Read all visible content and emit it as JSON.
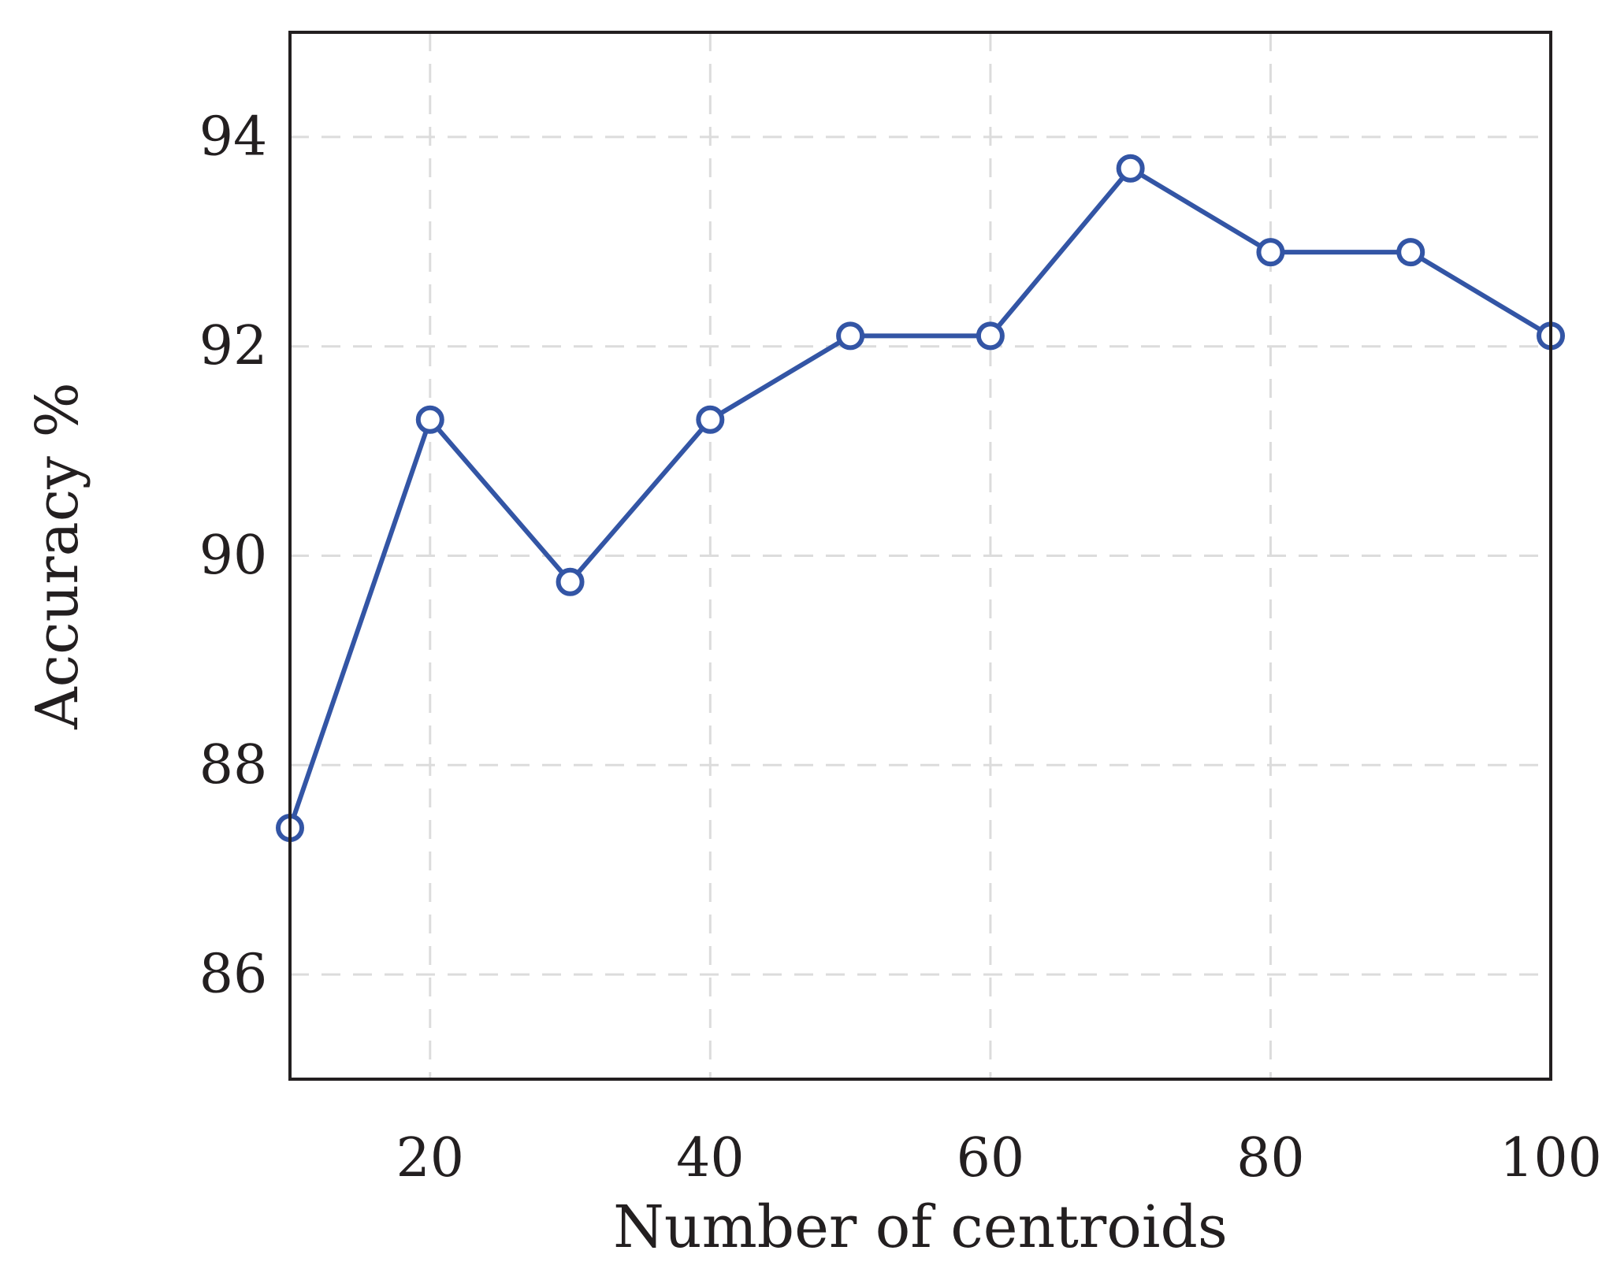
{
  "chart_data": {
    "type": "line",
    "title": "",
    "xlabel": "Number of centroids",
    "ylabel": "Accuracy %",
    "xlim": [
      10,
      100
    ],
    "ylim": [
      85,
      95
    ],
    "xticks": [
      20,
      40,
      60,
      80,
      100
    ],
    "yticks": [
      86,
      88,
      90,
      92,
      94
    ],
    "grid": true,
    "series": [
      {
        "color": "#3355a5",
        "x": [
          10,
          20,
          30,
          40,
          50,
          60,
          70,
          80,
          90,
          100
        ],
        "y": [
          87.4,
          91.3,
          89.75,
          91.3,
          92.1,
          92.1,
          93.7,
          92.9,
          92.9,
          92.1
        ],
        "marker": "open-circle"
      }
    ]
  }
}
